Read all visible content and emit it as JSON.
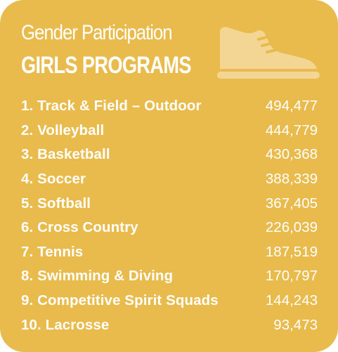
{
  "header": {
    "subtitle": "Gender Participation",
    "title": "GIRLS PROGRAMS",
    "icon": "sneaker-icon"
  },
  "colors": {
    "background": "#e9bb4c",
    "text": "#ffffff",
    "icon_fill": "#f3d594"
  },
  "programs": [
    {
      "label": "1. Track & Field – Outdoor",
      "value": "494,477"
    },
    {
      "label": "2. Volleyball",
      "value": "444,779"
    },
    {
      "label": "3. Basketball",
      "value": "430,368"
    },
    {
      "label": "4. Soccer",
      "value": "388,339"
    },
    {
      "label": "5. Softball",
      "value": "367,405"
    },
    {
      "label": "6. Cross Country",
      "value": "226,039"
    },
    {
      "label": "7. Tennis",
      "value": "187,519"
    },
    {
      "label": "8. Swimming & Diving",
      "value": "170,797"
    },
    {
      "label": "9. Competitive Spirit Squads",
      "value": "144,243"
    },
    {
      "label": "10. Lacrosse",
      "value": "93,473"
    }
  ]
}
